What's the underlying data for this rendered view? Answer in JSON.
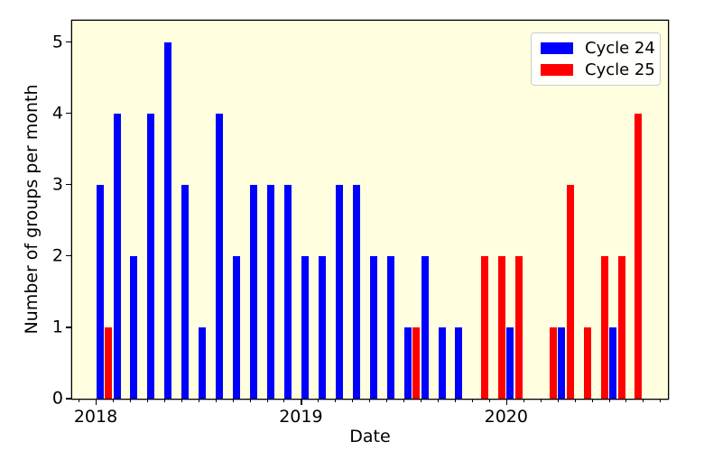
{
  "chart_data": {
    "type": "bar",
    "title": "",
    "xlabel": "Date",
    "ylabel": "Number of groups per month",
    "axes_background": "#FFFFE0",
    "grid": false,
    "legend_position": "upper right",
    "x_tick_labels": [
      "2018",
      "2019",
      "2020"
    ],
    "y_ticks": [
      0,
      1,
      2,
      3,
      4,
      5
    ],
    "ylim": [
      0,
      5.3
    ],
    "categories": [
      "2018-01",
      "2018-02",
      "2018-03",
      "2018-04",
      "2018-05",
      "2018-06",
      "2018-07",
      "2018-08",
      "2018-09",
      "2018-10",
      "2018-11",
      "2018-12",
      "2019-01",
      "2019-02",
      "2019-03",
      "2019-04",
      "2019-05",
      "2019-06",
      "2019-07",
      "2019-08",
      "2019-09",
      "2019-10",
      "2019-11",
      "2019-12",
      "2020-01",
      "2020-02",
      "2020-03",
      "2020-04",
      "2020-05",
      "2020-06",
      "2020-07",
      "2020-08"
    ],
    "series": [
      {
        "name": "Cycle 24",
        "color": "#0000FF",
        "values": [
          3,
          4,
          2,
          4,
          5,
          3,
          1,
          4,
          2,
          3,
          3,
          3,
          2,
          2,
          3,
          3,
          2,
          2,
          1,
          2,
          1,
          1,
          0,
          0,
          1,
          0,
          0,
          1,
          0,
          0,
          1,
          0
        ]
      },
      {
        "name": "Cycle 25",
        "color": "#FF0000",
        "values": [
          1,
          0,
          0,
          0,
          0,
          0,
          0,
          0,
          0,
          0,
          0,
          0,
          0,
          0,
          0,
          0,
          0,
          0,
          1,
          0,
          0,
          0,
          2,
          2,
          2,
          0,
          1,
          3,
          1,
          2,
          2,
          4
        ]
      }
    ]
  }
}
